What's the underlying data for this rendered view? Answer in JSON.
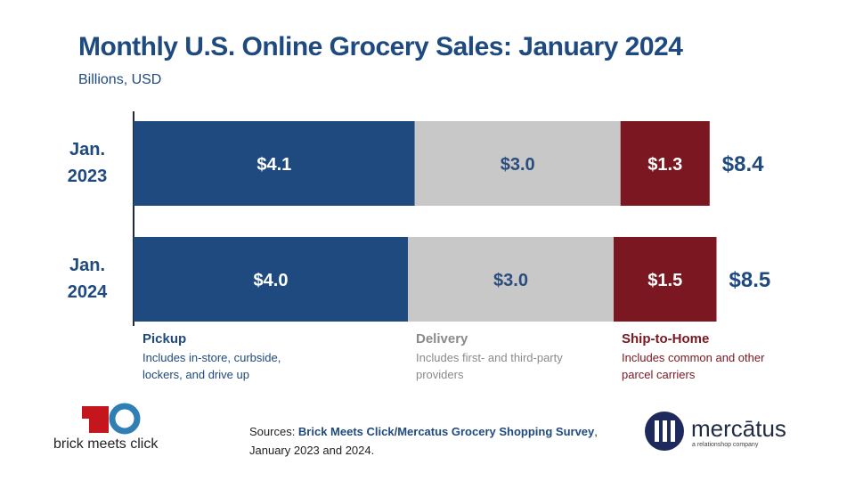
{
  "chart_data": {
    "type": "stacked-bar-horizontal",
    "title": "Monthly U.S. Online Grocery Sales: January 2024",
    "subtitle": "Billions, USD",
    "categories": [
      "Jan. 2023",
      "Jan. 2024"
    ],
    "series": [
      {
        "name": "Pickup",
        "description": "Includes in-store, curbside, lockers, and drive up",
        "color": "#1f4a7f",
        "label_color": "#ffffff",
        "values": [
          4.1,
          4.0
        ],
        "value_labels": [
          "$4.1",
          "$4.0"
        ]
      },
      {
        "name": "Delivery",
        "description": "Includes first- and third-party providers",
        "color": "#c8c8c8",
        "label_color": "#2b4d7e",
        "values": [
          3.0,
          3.0
        ],
        "value_labels": [
          "$3.0",
          "$3.0"
        ]
      },
      {
        "name": "Ship-to-Home",
        "description": "Includes common and other parcel carriers",
        "color": "#7b1720",
        "label_color": "#ffffff",
        "values": [
          1.3,
          1.5
        ],
        "value_labels": [
          "$1.3",
          "$1.5"
        ]
      }
    ],
    "totals": {
      "values": [
        8.4,
        8.5
      ],
      "value_labels": [
        "$8.4",
        "$8.5"
      ]
    }
  },
  "sources": {
    "prefix": "Sources: ",
    "source": "Brick Meets Click/Mercatus Grocery Shopping Survey",
    "suffix": ", January 2023 and 2024."
  },
  "logos": {
    "left": "brick meets click",
    "right": "mercātus",
    "right_tagline": "a relationshop company"
  }
}
